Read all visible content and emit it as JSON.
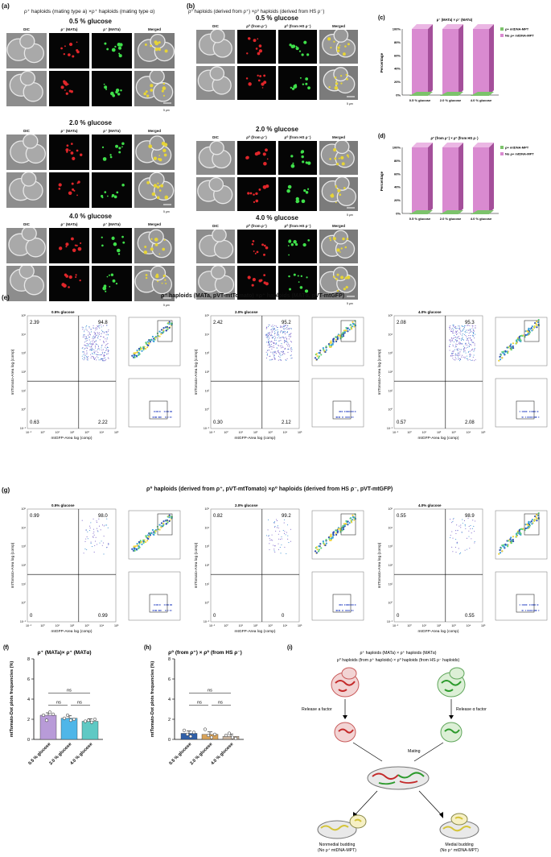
{
  "panels": {
    "a": {
      "label": "(a)",
      "title": "ρ⁺ haploids (mating type a) ×ρ⁺ haploids  (mating type α)",
      "columns": [
        "DIC",
        "ρ⁺ (MATa)",
        "ρ⁺ (MATα)",
        "Merged"
      ],
      "groups": [
        {
          "glucose": "0.5 % glucose",
          "scale": "5 μm"
        },
        {
          "glucose": "2.0 % glucose",
          "scale": "5 μm"
        },
        {
          "glucose": "4.0 % glucose",
          "scale": "5 μm"
        }
      ]
    },
    "b": {
      "label": "(b)",
      "title": "ρ⁰ haploids (derived from ρ⁺) ×ρ⁰ haploids  (derived from HS ρ⁻)",
      "columns": [
        "DIC",
        "ρ⁰ (from ρ⁺)",
        "ρ⁰ (from HS ρ⁻)",
        "Merged"
      ],
      "groups": [
        {
          "glucose": "0.5 % glucose",
          "scale": "5 μm"
        },
        {
          "glucose": "2.0 % glucose",
          "scale": "5 μm"
        },
        {
          "glucose": "4.0 % glucose",
          "scale": "5 μm"
        }
      ]
    },
    "e": {
      "label": "(e)",
      "title": "ρ⁺ haploids (MATa, pVT-mtTomato) ×ρ⁺ haploids  (MATα, pVT-mtGFP)"
    },
    "g": {
      "label": "(g)",
      "title": "ρ⁰ haploids (derived from ρ⁺, pVT-mtTomato) ×ρ⁰ haploids  (derived from HS ρ⁻, pVT-mtGFP)"
    },
    "i": {
      "label": "(i)",
      "line1": "ρ⁺ haploids (MATa) × ρ⁺ haploids (MATα)",
      "line2": "ρ⁰ haploids (from ρ⁺ haploids) × ρ⁰ haploids (from HS ρ⁻ haploids)",
      "release_a": "Release a factor",
      "release_alpha": "Release α factor",
      "mating": "Mating",
      "outcome_left": "Nonmedial budding",
      "outcome_left_sub": "(No ρ⁺ mtDNA-MPT)",
      "outcome_right": "Medial budding",
      "outcome_right_sub": "(No ρ⁺ mtDNA-MPT)"
    }
  },
  "flow": {
    "x_label": "mtGFP-Area log (comp)",
    "y_label": "mtTomato-Area log (comp)",
    "ticks": [
      "10⁻¹",
      "10⁰",
      "10¹",
      "10²",
      "10³",
      "10⁴",
      "10⁵"
    ],
    "e_plots": [
      {
        "title": "0.5% glucose",
        "ul": "2.39",
        "ur": "94.8",
        "ll": "0.63",
        "lr": "2.22"
      },
      {
        "title": "2.0% glucose",
        "ul": "2.42",
        "ur": "95.2",
        "ll": "0.30",
        "lr": "2.12"
      },
      {
        "title": "4.0% glucose",
        "ul": "2.08",
        "ur": "95.3",
        "ll": "0.57",
        "lr": "2.08"
      }
    ],
    "g_plots": [
      {
        "title": "0.5% glucose",
        "ul": "0.99",
        "ur": "98.0",
        "ll": "0",
        "lr": "0.99"
      },
      {
        "title": "2.0% glucose",
        "ul": "0.82",
        "ur": "99.2",
        "ll": "0",
        "lr": "0"
      },
      {
        "title": "4.0% glucose",
        "ul": "0.55",
        "ur": "98.9",
        "ll": "0",
        "lr": "0.55"
      }
    ]
  },
  "chart_data": [
    {
      "id": "c",
      "label": "(c)",
      "type": "bar",
      "title": "ρ⁺ (MATa) × ρ⁺ (MATα)",
      "ylabel": "Percentage",
      "categories": [
        "0.5 % glucose",
        "2.0 % glucose",
        "4.0 % glucose"
      ],
      "yticks": [
        "0%",
        "20%",
        "40%",
        "60%",
        "80%",
        "100%"
      ],
      "ylim": [
        0,
        100
      ],
      "series": [
        {
          "name": "ρ+ mtDNA-MPT",
          "values": [
            0,
            0,
            0
          ],
          "color": "#7cc36b"
        },
        {
          "name": "No ρ+ mtDNA-MPT",
          "values": [
            100,
            100,
            100
          ],
          "color": "#d98ad0"
        }
      ],
      "legend": "top-right"
    },
    {
      "id": "d",
      "label": "(d)",
      "type": "bar",
      "title": "ρ⁰ (from ρ⁺) × ρ⁰ (from HS ρ⁻)",
      "ylabel": "Percentage",
      "categories": [
        "0.5 % glucose",
        "2.0 % glucose",
        "4.0 % glucose"
      ],
      "yticks": [
        "0%",
        "20%",
        "40%",
        "60%",
        "80%",
        "100%"
      ],
      "ylim": [
        0,
        100
      ],
      "series": [
        {
          "name": "ρ+ mtDNA-MPT",
          "values": [
            0,
            0,
            0
          ],
          "color": "#7cc36b"
        },
        {
          "name": "No ρ+ mtDNA-MPT",
          "values": [
            100,
            100,
            100
          ],
          "color": "#d98ad0"
        }
      ],
      "legend": "top-right"
    },
    {
      "id": "f",
      "label": "(f)",
      "type": "bar",
      "title": "ρ⁺ (MATa)× ρ⁺ (MATα)",
      "ylabel": "mtTomato-Dot plots frequencies (%)",
      "categories": [
        "0.5 % glucose",
        "2.0 % glucose",
        "4.0 % glucose"
      ],
      "yticks": [
        "0",
        "2",
        "4",
        "6",
        "8"
      ],
      "ylim": [
        0,
        8
      ],
      "values": [
        2.4,
        2.1,
        1.8
      ],
      "colors": [
        "#b89bd8",
        "#4fb6e8",
        "#5fc9c4"
      ],
      "points": [
        [
          2.4,
          1.9,
          2.7,
          2.5
        ],
        [
          2.1,
          2.4,
          1.9,
          2.0
        ],
        [
          1.8,
          1.9,
          1.7,
          2.0
        ]
      ],
      "significance": [
        "ns",
        "ns",
        "ns"
      ]
    },
    {
      "id": "h",
      "label": "(h)",
      "type": "bar",
      "title": "ρ⁰ (from ρ⁺) × ρ⁰ (from HS ρ⁻)",
      "ylabel": "mtTomato-Dot plots frequencies (%)",
      "categories": [
        "0.5 % glucose",
        "2.0 % glucose",
        "4.0 % glucose"
      ],
      "yticks": [
        "0",
        "2",
        "4",
        "6",
        "8"
      ],
      "ylim": [
        0,
        8
      ],
      "values": [
        0.6,
        0.5,
        0.3
      ],
      "colors": [
        "#2f5fa8",
        "#d8a35a",
        "#c9b5a0"
      ],
      "points": [
        [
          0.9,
          0.5,
          0.3,
          0.7
        ],
        [
          1.0,
          0.4,
          0.2,
          0.5
        ],
        [
          0.4,
          0.6,
          0.2,
          0.1
        ]
      ],
      "significance": [
        "ns",
        "ns",
        "ns"
      ]
    }
  ]
}
